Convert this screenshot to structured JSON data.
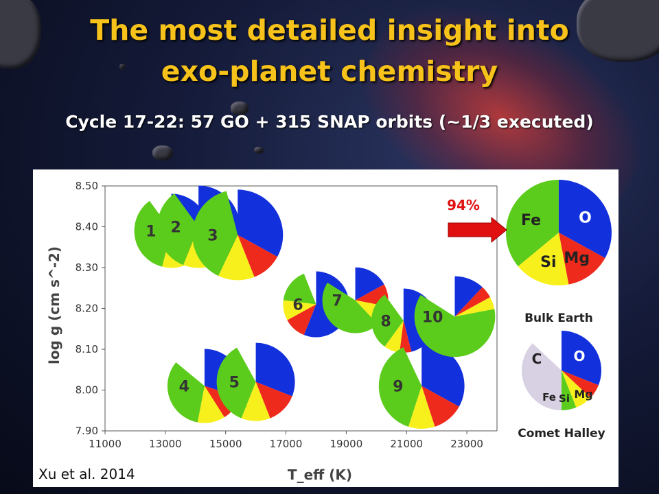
{
  "header": {
    "title_line1": "The most detailed insight into",
    "title_line2": "exo-planet chemistry",
    "subtitle": "Cycle 17-22: 57 GO + 315 SNAP orbits (~1/3 executed)"
  },
  "credit": "Xu et al. 2014",
  "colors": {
    "O": "#1330dd",
    "Mg": "#ee2a1c",
    "Si": "#f8f01c",
    "Fe": "#5ccc1c",
    "C": "#d7d1e3",
    "title": "#f7c21a",
    "arrow": "#e01010"
  },
  "chart_data": {
    "type": "scatter",
    "title": "",
    "xlabel": "T_eff (K)",
    "ylabel": "log g (cm s^-2)",
    "xlim": [
      11000,
      24000
    ],
    "ylim": [
      7.9,
      8.5
    ],
    "xticks": [
      "11000",
      "13000",
      "15000",
      "17000",
      "19000",
      "21000",
      "23000"
    ],
    "yticks": [
      "8.50",
      "8.40",
      "8.30",
      "8.20",
      "8.10",
      "8.00",
      "7.90"
    ],
    "grid": false,
    "points": [
      {
        "label": "1",
        "x": 13200,
        "y": 8.39,
        "r": 0.9,
        "start": 0,
        "fractions": [
          0.28,
          0.12,
          0.14,
          0.36
        ]
      },
      {
        "label": "2",
        "x": 14100,
        "y": 8.4,
        "r": 1.0,
        "start": 0,
        "fractions": [
          0.34,
          0.1,
          0.12,
          0.34
        ]
      },
      {
        "label": "3",
        "x": 15400,
        "y": 8.38,
        "r": 1.1,
        "start": 0,
        "fractions": [
          0.33,
          0.11,
          0.13,
          0.39
        ]
      },
      {
        "label": "4",
        "x": 14300,
        "y": 8.01,
        "r": 0.9,
        "start": 0,
        "fractions": [
          0.3,
          0.11,
          0.12,
          0.33
        ]
      },
      {
        "label": "5",
        "x": 16000,
        "y": 8.02,
        "r": 0.95,
        "start": 0,
        "fractions": [
          0.31,
          0.13,
          0.12,
          0.36
        ]
      },
      {
        "label": "6",
        "x": 18000,
        "y": 8.21,
        "r": 0.8,
        "start": 0,
        "fractions": [
          0.56,
          0.11,
          0.1,
          0.17
        ]
      },
      {
        "label": "7",
        "x": 19300,
        "y": 8.22,
        "r": 0.8,
        "start": 0,
        "fractions": [
          0.17,
          0.11,
          0.1,
          0.46
        ]
      },
      {
        "label": "8",
        "x": 20900,
        "y": 8.17,
        "r": 0.78,
        "start": 0,
        "fractions": [
          0.46,
          0.06,
          0.08,
          0.3
        ]
      },
      {
        "label": "9",
        "x": 21500,
        "y": 8.01,
        "r": 1.04,
        "start": 0,
        "fractions": [
          0.33,
          0.12,
          0.1,
          0.38
        ]
      },
      {
        "label": "10",
        "x": 22600,
        "y": 8.18,
        "r": 0.98,
        "start": 0,
        "fractions": [
          0.12,
          0.05,
          0.05,
          0.62
        ]
      }
    ],
    "legend_pies": [
      {
        "name": "Bulk Earth",
        "note": "94%",
        "labels": [
          "O",
          "Mg",
          "Si",
          "Fe"
        ],
        "fractions": [
          0.33,
          0.14,
          0.17,
          0.36
        ]
      },
      {
        "name": "Comet Halley",
        "labels": [
          "O",
          "Mg",
          "Si",
          "Fe",
          "C"
        ],
        "fractions": [
          0.31,
          0.06,
          0.07,
          0.06,
          0.37
        ]
      }
    ]
  }
}
